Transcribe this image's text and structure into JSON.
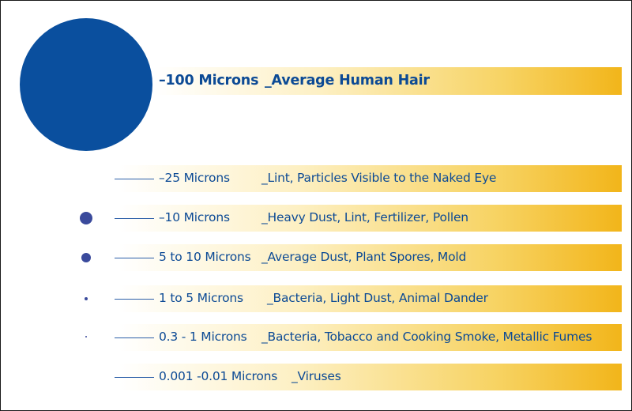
{
  "colors": {
    "circle": "#0a4f9e",
    "text": "#0c4a95",
    "bar_end": "#f2b51a"
  },
  "rows": [
    {
      "size": "–100 Microns",
      "description": "_Average Human Hair",
      "relative_dot": 1.0
    },
    {
      "size": "–25 Microns",
      "description": "_Lint, Particles Visible to the Naked Eye",
      "relative_dot": 0.0
    },
    {
      "size": "–10 Microns",
      "description": "_Heavy Dust, Lint, Fertilizer, Pollen",
      "relative_dot": 0.1
    },
    {
      "size": "5 to 10 Microns",
      "description": "_Average Dust, Plant Spores, Mold",
      "relative_dot": 0.075
    },
    {
      "size": "1 to 5 Microns",
      "description": "_Bacteria, Light Dust, Animal Dander",
      "relative_dot": 0.025
    },
    {
      "size": "0.3 - 1 Microns",
      "description": "_Bacteria, Tobacco and Cooking Smoke, Metallic Fumes",
      "relative_dot": 0.012
    },
    {
      "size": "0.001 -0.01 Microns",
      "description": "_Viruses",
      "relative_dot": 0.0
    }
  ]
}
